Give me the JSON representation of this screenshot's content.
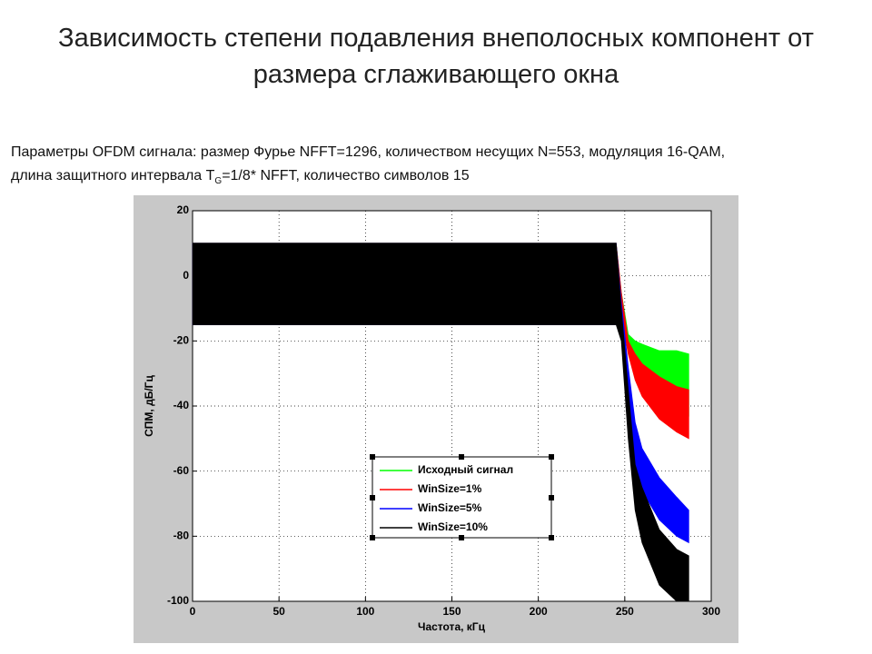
{
  "header": {
    "title_lines": [
      "Зависимость степени подавления внеполосных компонент от",
      "размера сглаживающего окна"
    ],
    "params_line1": "Параметры OFDM сигнала: размер Фурье NFFT=1296, количеством несущих N=553, модуляция 16-QAM,",
    "params_line2_a": "длина защитного интервала T",
    "params_line2_sub": "G",
    "params_line2_b": "=1/8* NFFT, количество символов 15"
  },
  "chart_data": {
    "type": "band",
    "xlabel": "Частота, кГц",
    "ylabel": "СПМ, дБ/Гц",
    "xlim": [
      0,
      300
    ],
    "ylim": [
      -100,
      20
    ],
    "xticks": [
      0,
      50,
      100,
      150,
      200,
      250,
      300
    ],
    "yticks": [
      -100,
      -80,
      -60,
      -40,
      -20,
      0,
      20
    ],
    "grid": true,
    "x": [
      0,
      245,
      248,
      252,
      256,
      260,
      270,
      280,
      287
    ],
    "series": [
      {
        "name": "Исходный сигнал",
        "color": "#00ff00",
        "high": [
          10,
          10,
          -5,
          -18,
          -20,
          -21,
          -23,
          -23,
          -24
        ],
        "low": [
          -15,
          -15,
          -10,
          -22,
          -26,
          -29,
          -35,
          -40,
          -43
        ]
      },
      {
        "name": "WinSize=1%",
        "color": "#ff0000",
        "high": [
          10,
          10,
          -5,
          -20,
          -24,
          -27,
          -31,
          -34,
          -35
        ],
        "low": [
          -15,
          -15,
          -12,
          -24,
          -32,
          -37,
          -44,
          -48,
          -50
        ]
      },
      {
        "name": "WinSize=5%",
        "color": "#0000ff",
        "high": [
          10,
          10,
          -8,
          -28,
          -45,
          -53,
          -62,
          -68,
          -72
        ],
        "low": [
          -15,
          -15,
          -15,
          -40,
          -58,
          -66,
          -75,
          -80,
          -82
        ]
      },
      {
        "name": "WinSize=10%",
        "color": "#000000",
        "high": [
          10,
          10,
          -10,
          -35,
          -58,
          -65,
          -78,
          -84,
          -86
        ],
        "low": [
          -15,
          -15,
          -20,
          -50,
          -72,
          -82,
          -95,
          -100,
          -100
        ]
      }
    ]
  }
}
